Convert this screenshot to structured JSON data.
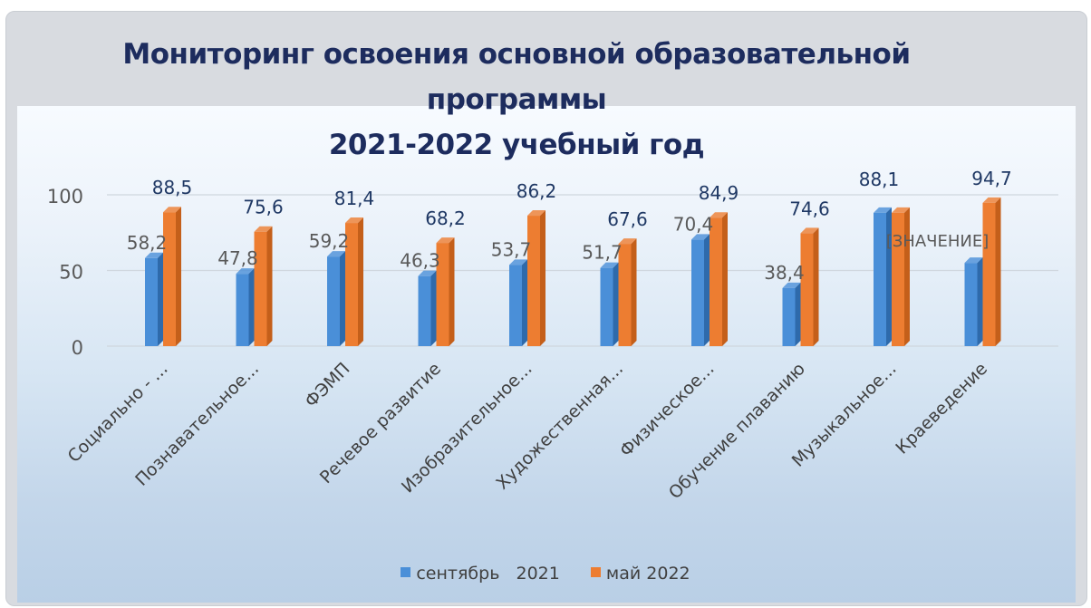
{
  "chart_data": {
    "type": "bar",
    "title_lines": [
      "Мониторинг освоения основной образовательной",
      "программы",
      "2021-2022 учебный год"
    ],
    "categories": [
      "Социально - ...",
      "Познавательное...",
      "ФЭМП",
      "Речевое развитие",
      "Изобразительное...",
      "Художественная...",
      "Физическое...",
      "Обучение плаванию",
      "Музыкальное...",
      "Краеведение"
    ],
    "series": [
      {
        "name": "сентябрь   2021",
        "color": "#4a8fd8",
        "values": [
          58.2,
          47.8,
          59.2,
          46.3,
          53.7,
          51.7,
          70.4,
          38.4,
          88.1,
          55.0
        ],
        "labels": [
          "58,2",
          "47,8",
          "59,2",
          "46,3",
          "53,7",
          "51,7",
          "70,4",
          "38,4",
          "88,1",
          "[ЗНАЧЕНИЕ]"
        ]
      },
      {
        "name": "май 2022",
        "color": "#ed7d31",
        "values": [
          88.5,
          75.6,
          81.4,
          68.2,
          86.2,
          67.6,
          84.9,
          74.6,
          88.1,
          94.7
        ],
        "labels": [
          "88,5",
          "75,6",
          "81,4",
          "68,2",
          "86,2",
          "67,6",
          "84,9",
          "74,6",
          "",
          "94,7"
        ]
      }
    ],
    "y_ticks": [
      "0",
      "50",
      "100"
    ],
    "ylim": [
      0,
      100
    ],
    "grid": true,
    "legend_position": "bottom"
  }
}
